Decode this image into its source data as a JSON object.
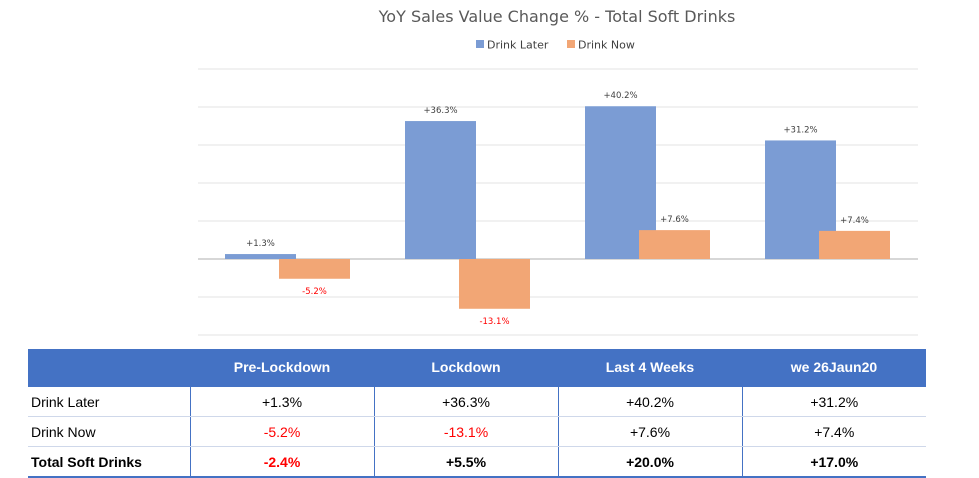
{
  "chart_data": {
    "type": "bar",
    "title": "YoY Sales Value Change % - Total Soft Drinks",
    "categories": [
      "Pre-Lockdown",
      "Lockdown",
      "Last 4 Weeks",
      "we 26Jaun20"
    ],
    "series": [
      {
        "name": "Drink Later",
        "values": [
          1.3,
          36.3,
          40.2,
          31.2
        ],
        "labels": [
          "+1.3%",
          "+36.3%",
          "+40.2%",
          "+31.2%"
        ],
        "color": "#7b9cd4"
      },
      {
        "name": "Drink Now",
        "values": [
          -5.2,
          -13.1,
          7.6,
          7.4
        ],
        "labels": [
          "-5.2%",
          "-13.1%",
          "+7.6%",
          "+7.4%"
        ],
        "color": "#f2a675"
      }
    ],
    "ylim": [
      -20,
      50
    ],
    "grid": true,
    "legend_position": "top",
    "negative_label_color": "#ff0000"
  },
  "table": {
    "headers": [
      "",
      "Pre-Lockdown",
      "Lockdown",
      "Last 4 Weeks",
      "we 26Jaun20"
    ],
    "rows": [
      {
        "label": "Drink Later",
        "cells": [
          "+1.3%",
          "+36.3%",
          "+40.2%",
          "+31.2%"
        ]
      },
      {
        "label": "Drink Now",
        "cells": [
          "-5.2%",
          "-13.1%",
          "+7.6%",
          "+7.4%"
        ]
      },
      {
        "label": "Total Soft Drinks",
        "cells": [
          "-2.4%",
          "+5.5%",
          "+20.0%",
          "+17.0%"
        ]
      }
    ],
    "header_color": "#4472c4",
    "negative_color": "#ff0000"
  }
}
